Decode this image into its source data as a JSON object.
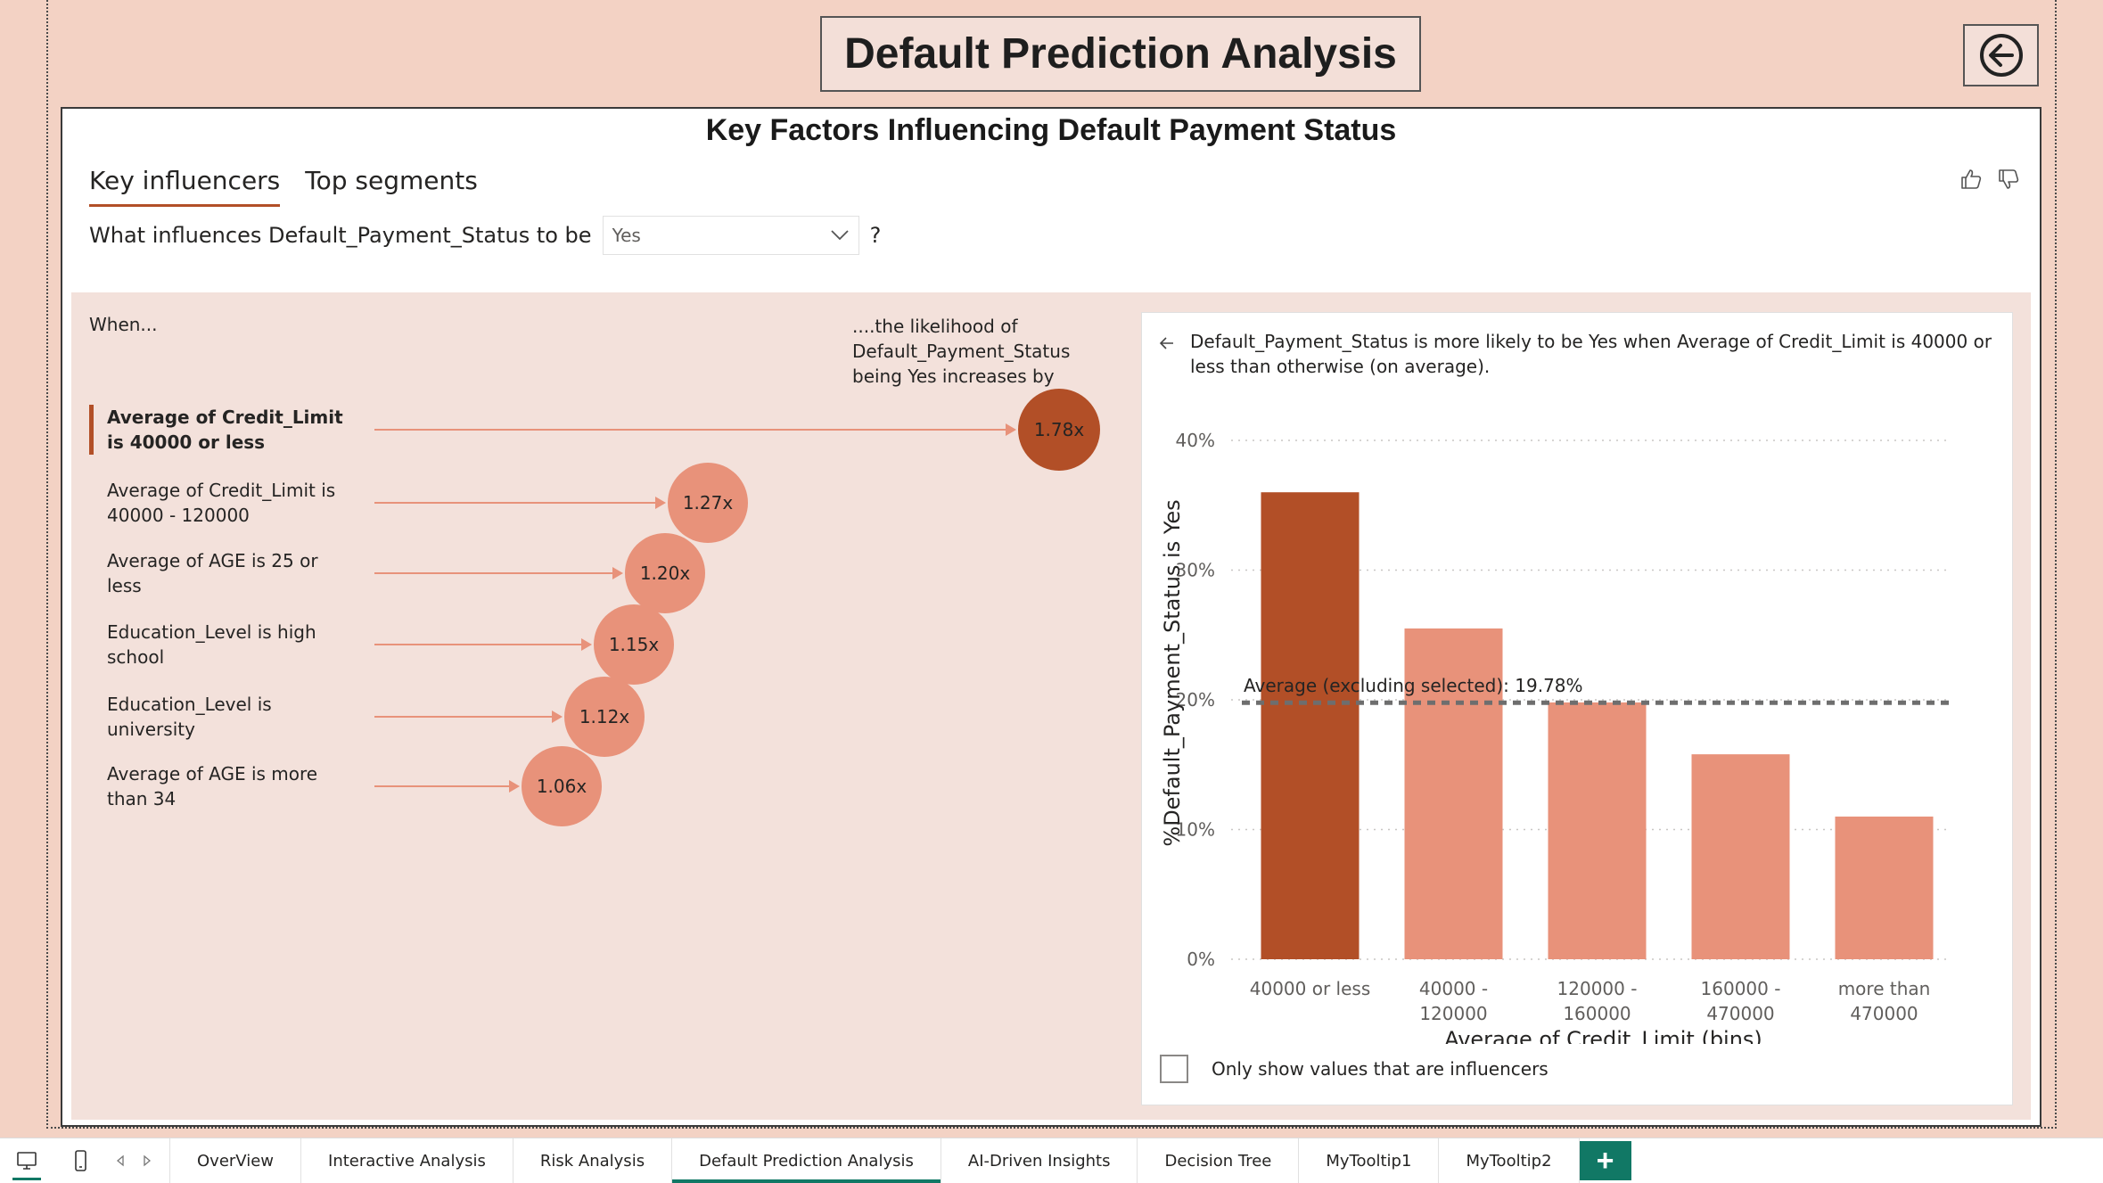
{
  "report_title": "Default Prediction Analysis",
  "visual": {
    "title": "Key Factors Influencing Default Payment Status",
    "tabs": [
      {
        "label": "Key influencers",
        "active": true
      },
      {
        "label": "Top segments",
        "active": false
      }
    ],
    "question_prefix": "What influences Default_Payment_Status to be",
    "selected_value": "Yes",
    "question_suffix": "?",
    "when_label": "When...",
    "likelihood_label": "....the likelihood of Default_Payment_Status being Yes increases by",
    "influencers": [
      {
        "label": "Average of Credit_Limit is 40000 or less",
        "value": "1.78x",
        "selected": true
      },
      {
        "label": "Average of Credit_Limit is 40000 - 120000",
        "value": "1.27x",
        "selected": false
      },
      {
        "label": "Average of AGE is 25 or less",
        "value": "1.20x",
        "selected": false
      },
      {
        "label": "Education_Level is high school",
        "value": "1.15x",
        "selected": false
      },
      {
        "label": "Education_Level is university",
        "value": "1.12x",
        "selected": false
      },
      {
        "label": "Average of AGE is more than 34",
        "value": "1.06x",
        "selected": false
      }
    ],
    "detail_text": "Default_Payment_Status is more likely to be Yes when Average of Credit_Limit is 40000 or less than otherwise (on average).",
    "checkbox_label": "Only show values that are influencers",
    "colors": {
      "selected": "#b24f27",
      "normal": "#e8927a",
      "average_line": "#6e6e6e"
    }
  },
  "chart_data": {
    "type": "bar",
    "categories": [
      "40000 or less",
      "40000 - 120000",
      "120000 - 160000",
      "160000 - 470000",
      "more than 470000"
    ],
    "category_lines": [
      [
        "40000 or less"
      ],
      [
        "40000 -",
        "120000"
      ],
      [
        "120000 -",
        "160000"
      ],
      [
        "160000 -",
        "470000"
      ],
      [
        "more than",
        "470000"
      ]
    ],
    "values": [
      36,
      25.5,
      19.8,
      15.8,
      11
    ],
    "highlighted_index": 0,
    "xlabel": "Average of Credit_Limit (bins)",
    "ylabel": "%Default_Payment_Status is Yes",
    "ylim": [
      0,
      40
    ],
    "yticks": [
      0,
      10,
      20,
      30,
      40
    ],
    "ytick_labels": [
      "0%",
      "10%",
      "20%",
      "30%",
      "40%"
    ],
    "average_line": {
      "value": 19.78,
      "label": "Average (excluding selected): 19.78%"
    },
    "grid": true
  },
  "status_bar": {
    "pages": [
      {
        "label": "OverView",
        "active": false
      },
      {
        "label": "Interactive Analysis",
        "active": false
      },
      {
        "label": "Risk Analysis",
        "active": false
      },
      {
        "label": "Default Prediction Analysis",
        "active": true
      },
      {
        "label": "AI-Driven Insights",
        "active": false
      },
      {
        "label": "Decision Tree",
        "active": false
      },
      {
        "label": "MyTooltip1",
        "active": false
      },
      {
        "label": "MyTooltip2",
        "active": false
      }
    ],
    "add_label": "+"
  }
}
